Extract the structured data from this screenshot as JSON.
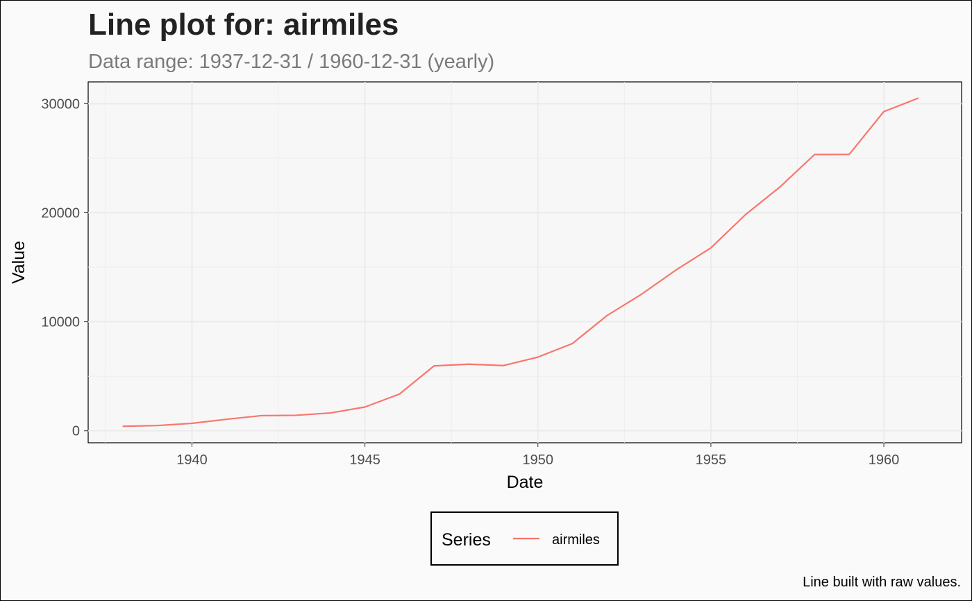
{
  "chart_data": {
    "type": "line",
    "title": "Line plot for: airmiles",
    "subtitle": "Data range: 1937-12-31 / 1960-12-31 (yearly)",
    "xlabel": "Date",
    "ylabel": "Value",
    "caption": "Line built with raw values.",
    "legend": {
      "title": "Series",
      "position": "bottom"
    },
    "grid": true,
    "xlim": [
      "1937-01-01",
      "1962-04-01"
    ],
    "ylim": [
      -1100,
      32000
    ],
    "x_ticks": [
      "1940",
      "1945",
      "1950",
      "1955",
      "1960"
    ],
    "y_ticks": [
      "0",
      "10000",
      "20000",
      "30000"
    ],
    "x": [
      "1937-12-31",
      "1938-12-31",
      "1939-12-31",
      "1940-12-31",
      "1941-12-31",
      "1942-12-31",
      "1943-12-31",
      "1944-12-31",
      "1945-12-31",
      "1946-12-31",
      "1947-12-31",
      "1948-12-31",
      "1949-12-31",
      "1950-12-31",
      "1951-12-31",
      "1952-12-31",
      "1953-12-31",
      "1954-12-31",
      "1955-12-31",
      "1956-12-31",
      "1957-12-31",
      "1958-12-31",
      "1959-12-31",
      "1960-12-31"
    ],
    "series": [
      {
        "name": "airmiles",
        "color": "#F8766D",
        "values": [
          412,
          480,
          683,
          1052,
          1385,
          1418,
          1634,
          2178,
          3362,
          5948,
          6109,
          5981,
          6753,
          8003,
          10566,
          12528,
          14760,
          16769,
          19819,
          22362,
          25340,
          25343,
          29269,
          30514
        ]
      }
    ]
  },
  "colors": {
    "background": "#fafafa",
    "grid": "#ebebeb",
    "line": "#F8766D"
  }
}
